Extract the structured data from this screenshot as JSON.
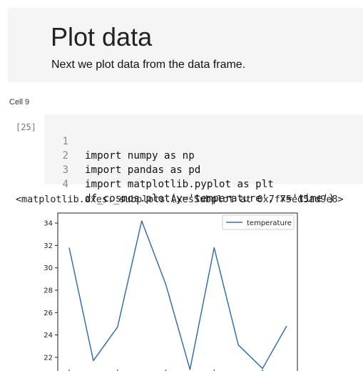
{
  "markdown": {
    "title": "Plot data",
    "text": "Next we plot data from the data frame."
  },
  "cell": {
    "label": "Cell 9",
    "prompt": "[25]",
    "lines": [
      {
        "num": "1",
        "code": "import numpy as np"
      },
      {
        "num": "2",
        "code": "import pandas as pd"
      },
      {
        "num": "3",
        "code": "import matplotlib.pyplot as plt"
      },
      {
        "num": "4",
        "code": "df_cosmos.plot(y='temperature', x='time')"
      }
    ]
  },
  "output": {
    "text": "<matplotlib.axes._subplots.AxesSubplot at 0x7f75ed5ad9e8>"
  },
  "chart_data": {
    "type": "line",
    "title": "",
    "xlabel": "",
    "ylabel": "",
    "ylim": [
      20.2,
      34.9
    ],
    "yticks": [
      22,
      24,
      26,
      28,
      30,
      32,
      34
    ],
    "legend_position": "top-right",
    "grid": false,
    "series": [
      {
        "name": "temperature",
        "color": "#3a6ea8",
        "x": [
          0,
          1,
          2,
          3,
          4,
          5,
          6,
          7,
          8,
          9
        ],
        "values": [
          31.8,
          21.7,
          24.7,
          34.2,
          28.5,
          20.9,
          31.8,
          23.1,
          21.0,
          24.8
        ]
      }
    ]
  }
}
